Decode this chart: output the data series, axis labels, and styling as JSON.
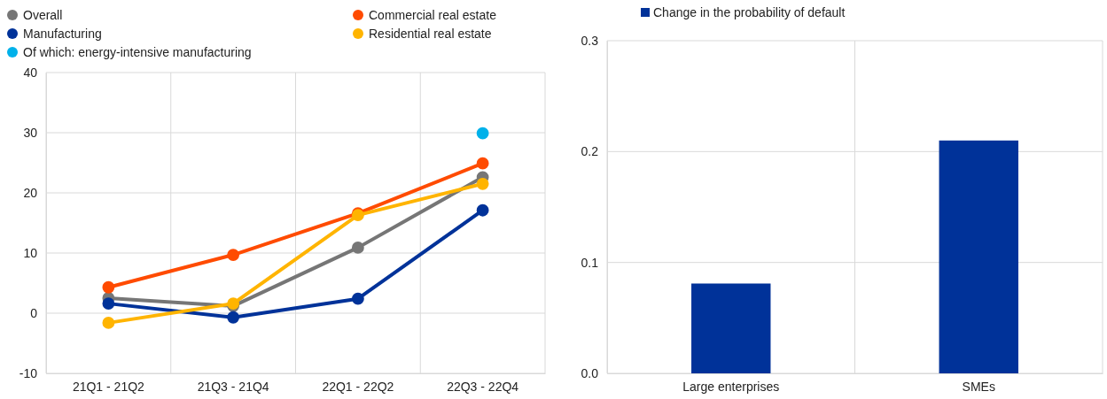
{
  "chart_data": [
    {
      "type": "line",
      "categories": [
        "21Q1 - 21Q2",
        "21Q3 - 21Q4",
        "22Q1 - 22Q2",
        "22Q3 - 22Q4"
      ],
      "series": [
        {
          "name": "Overall",
          "color": "#767676",
          "values": [
            2.5,
            1.2,
            10.9,
            22.6
          ]
        },
        {
          "name": "Manufacturing",
          "color": "#003299",
          "values": [
            1.6,
            -0.7,
            2.4,
            17.1
          ]
        },
        {
          "name": "Of which: energy-intensive manufacturing",
          "color": "#00b1ea",
          "type": "scatter",
          "values": [
            null,
            null,
            null,
            29.9
          ]
        },
        {
          "name": "Commercial real estate",
          "color": "#ff4b00",
          "values": [
            4.3,
            9.7,
            16.6,
            24.9
          ]
        },
        {
          "name": "Residential real estate",
          "color": "#ffb400",
          "values": [
            -1.6,
            1.6,
            16.3,
            21.5
          ]
        }
      ],
      "ylim": [
        -10,
        40
      ],
      "yticks": [
        -10,
        0,
        10,
        20,
        30,
        40
      ],
      "grid": true,
      "legend": "top",
      "marker": "circle"
    },
    {
      "type": "bar",
      "categories": [
        "Large enterprises",
        "SMEs"
      ],
      "series": [
        {
          "name": "Change in the probability of default",
          "color": "#003299",
          "values": [
            0.081,
            0.21
          ]
        }
      ],
      "ylim": [
        0,
        0.3
      ],
      "yticks": [
        {
          "value": 0,
          "label": "0.0"
        },
        0.1,
        0.2,
        0.3
      ],
      "grid": true,
      "legend": "top left"
    }
  ]
}
